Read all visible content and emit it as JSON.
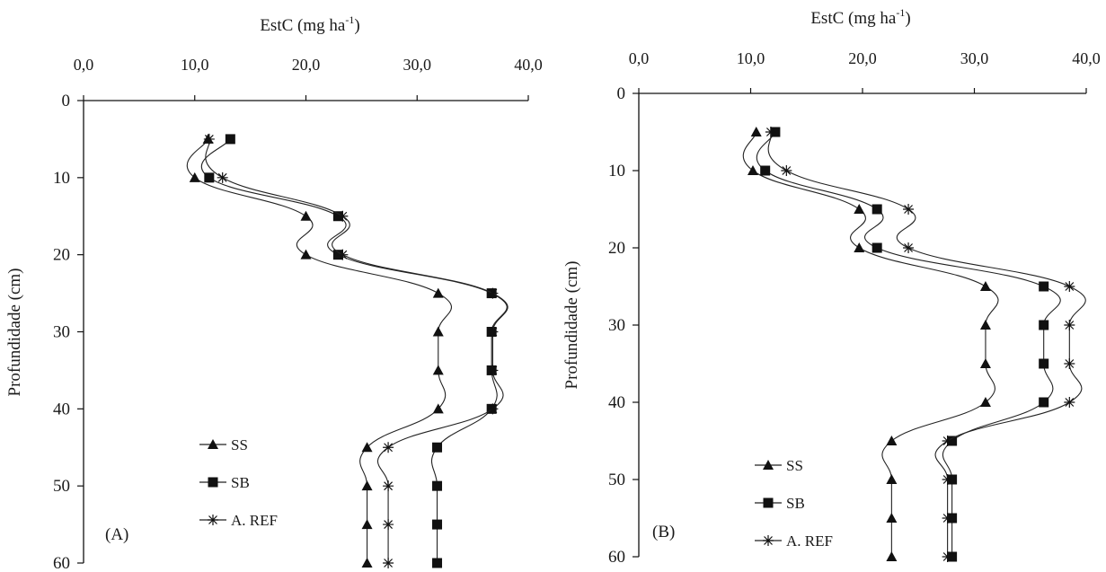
{
  "chart_data": [
    {
      "type": "line",
      "panel_label": "(A)",
      "title": "EstC (mg ha",
      "title_sup": "-1",
      "title_close": ")",
      "ylabel": "Profundidade (cm)",
      "xlim": [
        0,
        40
      ],
      "ylim": [
        0,
        60
      ],
      "x_axis_position": "top",
      "y_reversed": true,
      "x_ticks": [
        "0,0",
        "10,0",
        "20,0",
        "30,0",
        "40,0"
      ],
      "y_ticks": [
        "0",
        "10",
        "20",
        "30",
        "40",
        "50",
        "60"
      ],
      "grid": false,
      "legend_position": "bottom-left",
      "series": [
        {
          "name": "SS",
          "marker": "triangle",
          "depth": [
            5,
            10,
            15,
            20,
            25,
            30,
            35,
            40,
            45,
            50,
            55,
            60
          ],
          "values": [
            11.2,
            10.0,
            20.0,
            20.0,
            31.9,
            31.9,
            31.9,
            31.9,
            25.5,
            25.5,
            25.5,
            25.5
          ]
        },
        {
          "name": "SB",
          "marker": "square",
          "depth": [
            5,
            10,
            15,
            20,
            25,
            30,
            35,
            40,
            45,
            50,
            55,
            60
          ],
          "values": [
            13.2,
            11.3,
            22.9,
            22.9,
            36.7,
            36.7,
            36.7,
            36.7,
            31.8,
            31.8,
            31.8,
            31.8
          ]
        },
        {
          "name": "A. REF",
          "marker": "star",
          "depth": [
            5,
            10,
            15,
            20,
            25,
            30,
            35,
            40,
            45,
            50,
            55,
            60
          ],
          "values": [
            11.3,
            12.5,
            23.3,
            23.3,
            36.8,
            36.8,
            36.8,
            36.8,
            27.4,
            27.4,
            27.4,
            27.4
          ]
        }
      ]
    },
    {
      "type": "line",
      "panel_label": "(B)",
      "title": "EstC (mg ha",
      "title_sup": "-1",
      "title_close": ")",
      "ylabel": "Profundidade (cm)",
      "xlim": [
        0,
        40
      ],
      "ylim": [
        0,
        60
      ],
      "x_axis_position": "top",
      "y_reversed": true,
      "x_ticks": [
        "0,0",
        "10,0",
        "20,0",
        "30,0",
        "40,0"
      ],
      "y_ticks": [
        "0",
        "10",
        "20",
        "30",
        "40",
        "50",
        "60"
      ],
      "grid": false,
      "legend_position": "bottom-left",
      "series": [
        {
          "name": "SS",
          "marker": "triangle",
          "depth": [
            5,
            10,
            15,
            20,
            25,
            30,
            35,
            40,
            45,
            50,
            55,
            60
          ],
          "values": [
            10.5,
            10.2,
            19.7,
            19.7,
            31.0,
            31.0,
            31.0,
            31.0,
            22.6,
            22.6,
            22.6,
            22.6
          ]
        },
        {
          "name": "SB",
          "marker": "square",
          "depth": [
            5,
            10,
            15,
            20,
            25,
            30,
            35,
            40,
            45,
            50,
            55,
            60
          ],
          "values": [
            12.2,
            11.3,
            21.3,
            21.3,
            36.2,
            36.2,
            36.2,
            36.2,
            28.0,
            28.0,
            28.0,
            28.0
          ]
        },
        {
          "name": "A. REF",
          "marker": "star",
          "depth": [
            5,
            10,
            15,
            20,
            25,
            30,
            35,
            40,
            45,
            50,
            55,
            60
          ],
          "values": [
            11.8,
            13.2,
            24.1,
            24.1,
            38.5,
            38.5,
            38.5,
            38.5,
            27.6,
            27.6,
            27.6,
            27.6
          ]
        }
      ]
    }
  ]
}
